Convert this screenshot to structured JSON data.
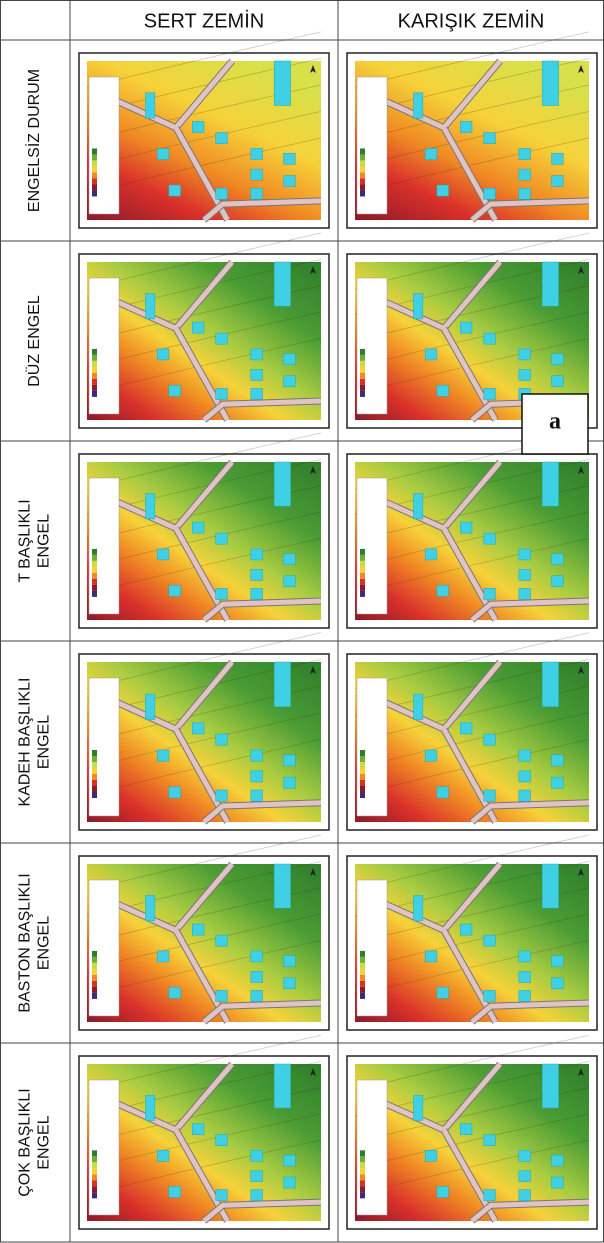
{
  "table": {
    "columns": [
      "SERT ZEMİN",
      "KARIŞIK ZEMİN"
    ],
    "rows": [
      {
        "label": [
          "ENGELSİZ DURUM"
        ]
      },
      {
        "label": [
          "DÜZ ENGEL"
        ]
      },
      {
        "label": [
          "T BAŞLIKLI",
          "ENGEL"
        ]
      },
      {
        "label": [
          "KADEH BAŞLIKLI",
          "ENGEL"
        ]
      },
      {
        "label": [
          "BASTON BAŞLIKLI",
          "ENGEL"
        ]
      },
      {
        "label": [
          "ÇOK BAŞLIKLI",
          "ENGEL"
        ]
      }
    ],
    "marker": "a"
  }
}
